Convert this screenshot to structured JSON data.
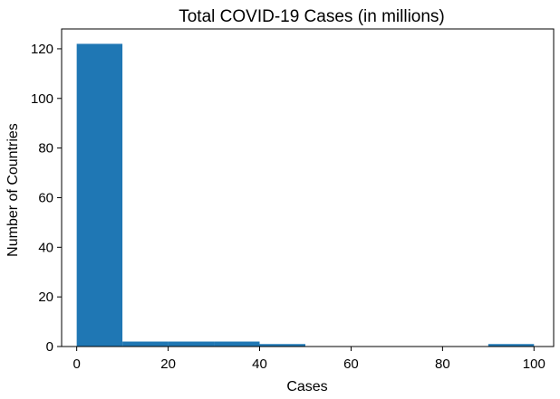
{
  "chart_data": {
    "type": "bar",
    "title": "Total COVID-19 Cases  (in millions)",
    "xlabel": "Cases",
    "ylabel": "Number of Countries",
    "xlim": [
      -3.3,
      104.3
    ],
    "ylim": [
      0,
      128
    ],
    "xticks": [
      0,
      20,
      40,
      60,
      80,
      100
    ],
    "yticks": [
      0,
      20,
      40,
      60,
      80,
      100,
      120
    ],
    "bins": [
      {
        "start": 0,
        "end": 10,
        "count": 122
      },
      {
        "start": 10,
        "end": 20,
        "count": 2
      },
      {
        "start": 20,
        "end": 30,
        "count": 2
      },
      {
        "start": 30,
        "end": 40,
        "count": 2
      },
      {
        "start": 40,
        "end": 50,
        "count": 1
      },
      {
        "start": 50,
        "end": 60,
        "count": 0
      },
      {
        "start": 60,
        "end": 70,
        "count": 0
      },
      {
        "start": 70,
        "end": 80,
        "count": 0
      },
      {
        "start": 80,
        "end": 90,
        "count": 0
      },
      {
        "start": 90,
        "end": 100,
        "count": 1
      }
    ],
    "bar_color": "#1f77b4",
    "grid": false,
    "legend": false
  }
}
